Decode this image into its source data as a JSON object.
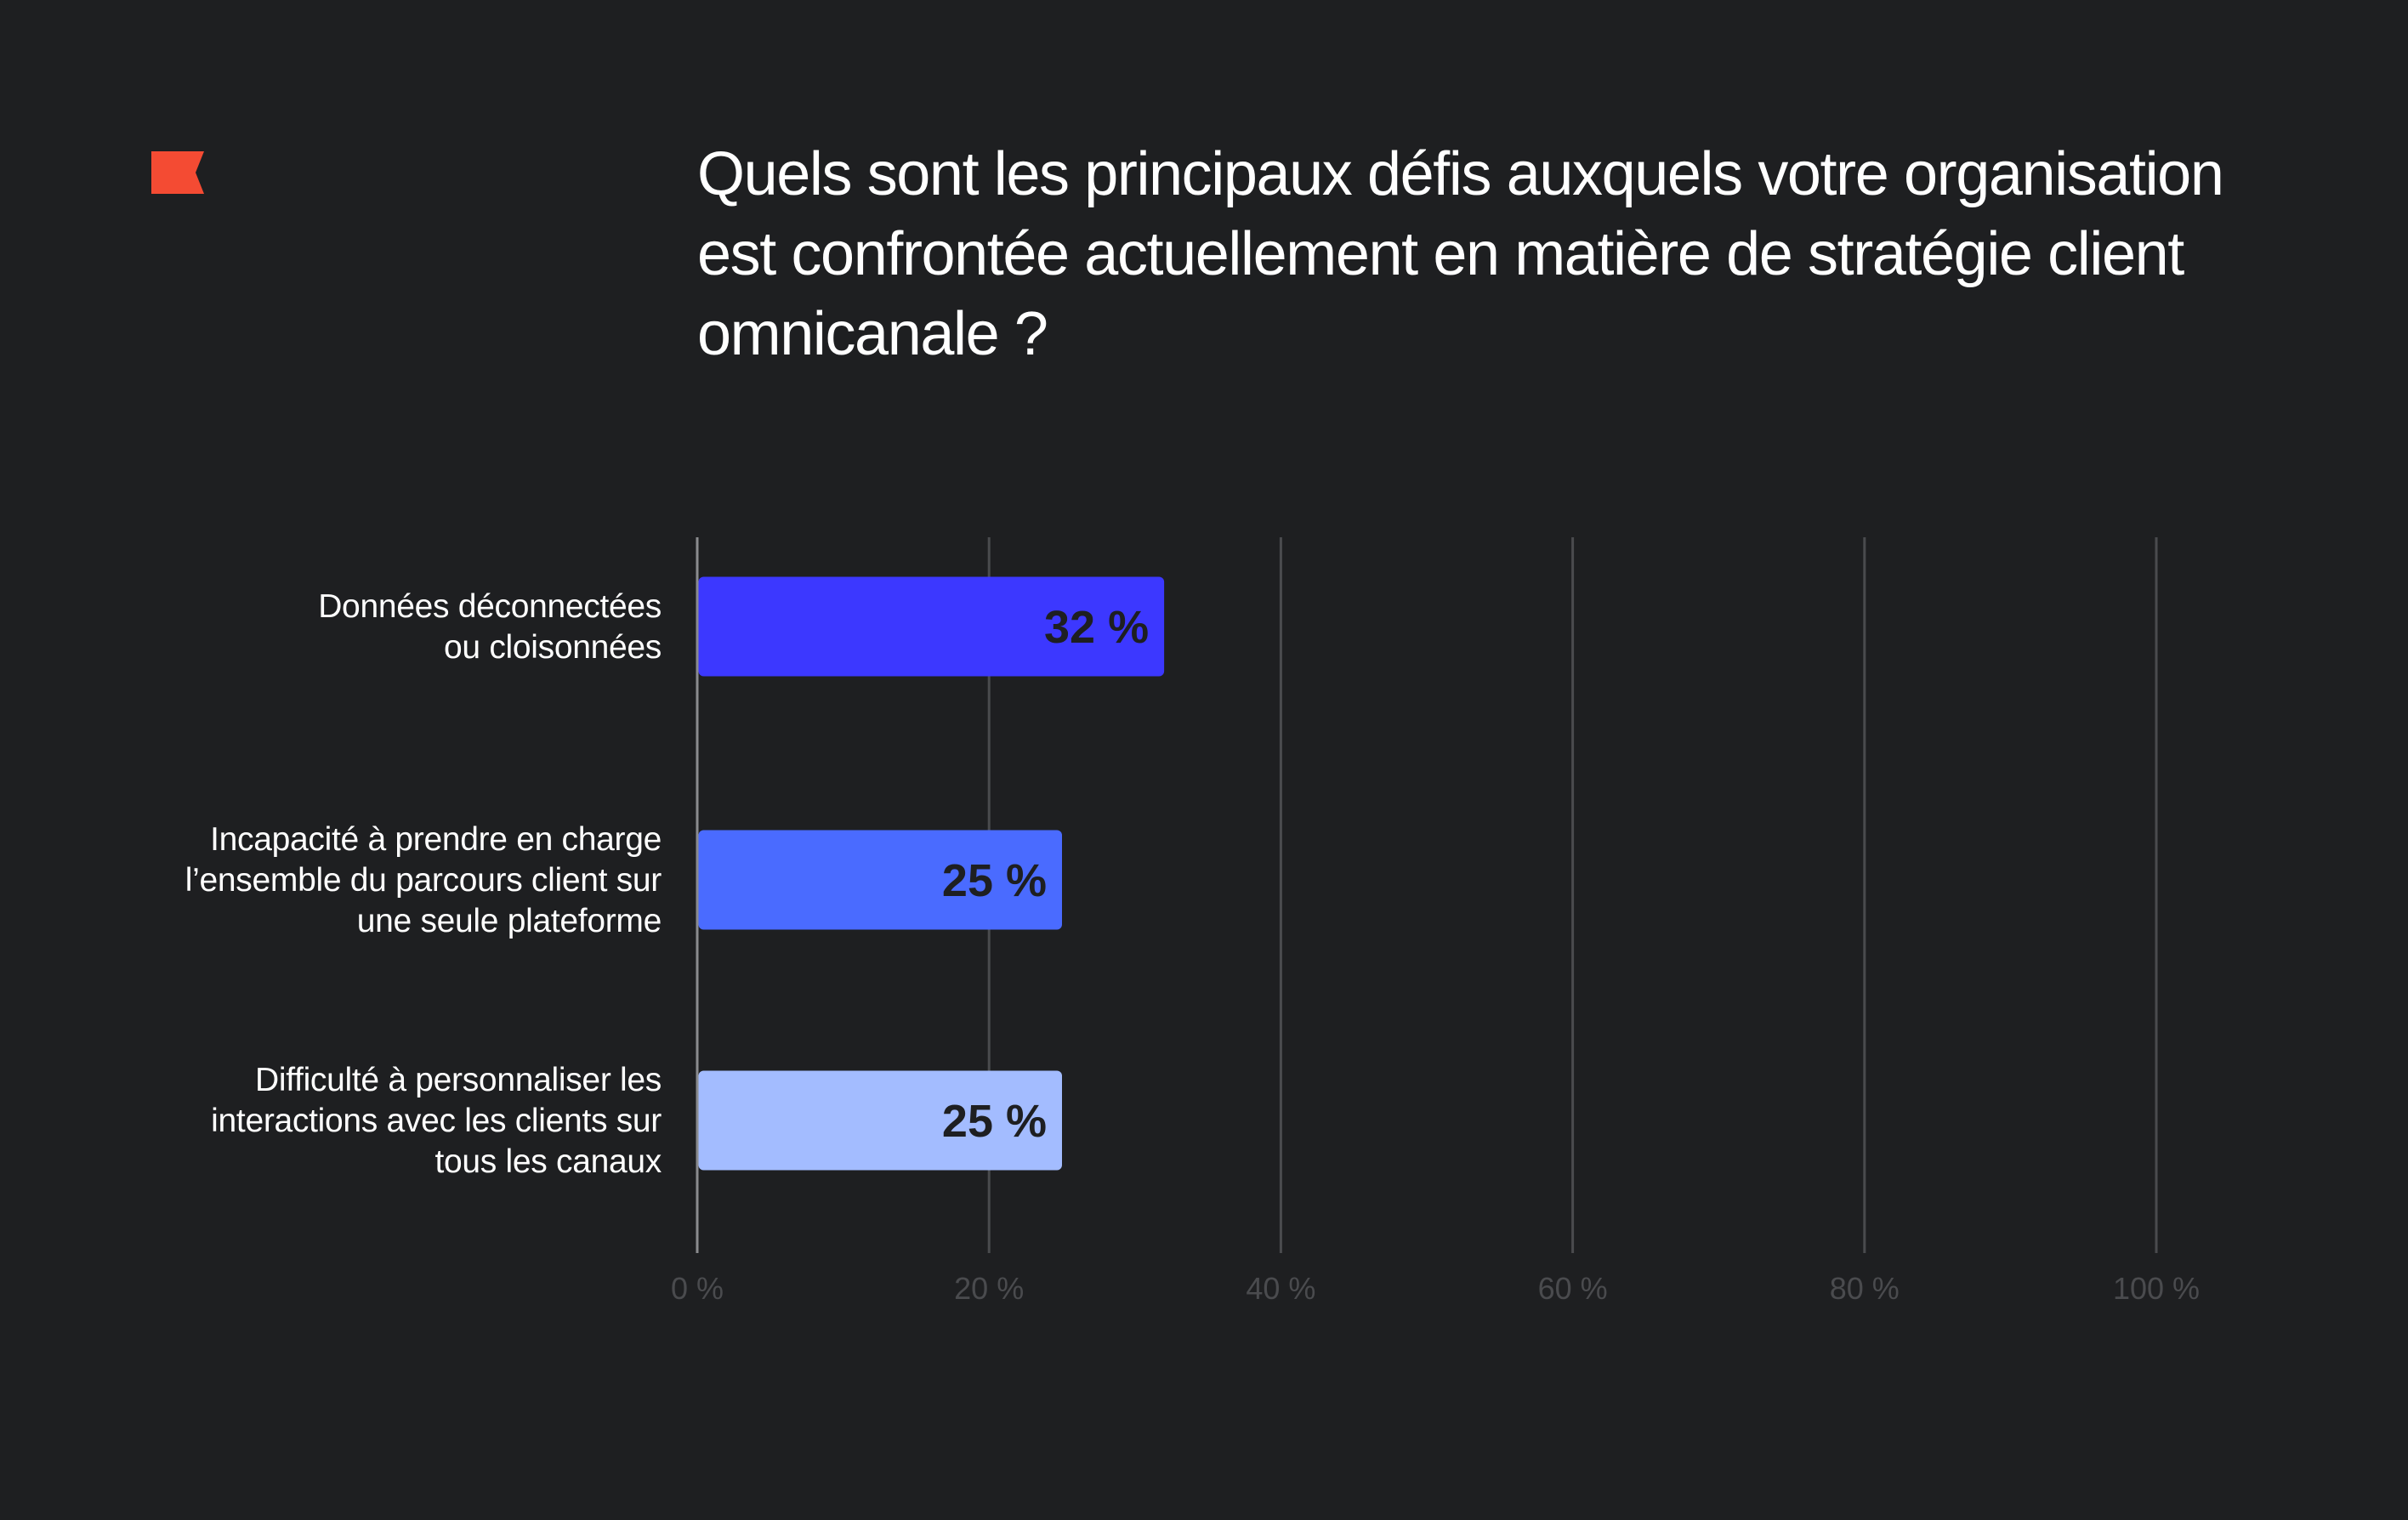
{
  "title": "Quels sont les principaux défis auxquels votre organisation est confrontée actuellement en matière de stratégie client omnicanale ?",
  "logo_icon": "red-flag-icon",
  "colors": {
    "background": "#1e1f21",
    "logo": "#f44b33",
    "gridline": "#4a4b4e",
    "axis": "#8a8b8e",
    "value_text": "#1e1f21"
  },
  "chart_data": {
    "type": "bar",
    "orientation": "horizontal",
    "categories": [
      [
        "Données déconnectées",
        "ou cloisonnées"
      ],
      [
        "Incapacité à prendre en charge",
        "l’ensemble du parcours client sur",
        "une seule plateforme"
      ],
      [
        "Difficulté à personnaliser les",
        "interactions avec les clients sur",
        "tous les canaux"
      ]
    ],
    "values": [
      32,
      25,
      25
    ],
    "value_labels": [
      "32 %",
      "25 %",
      "25 %"
    ],
    "bar_colors": [
      "#3c38ff",
      "#4a6bff",
      "#a3bcff"
    ],
    "xlim": [
      0,
      100
    ],
    "ticks": [
      0,
      20,
      40,
      60,
      80,
      100
    ],
    "tick_labels": [
      "0 %",
      "20 %",
      "40 %",
      "60 %",
      "80 %",
      "100 %"
    ],
    "grid": true,
    "legend": "none"
  }
}
